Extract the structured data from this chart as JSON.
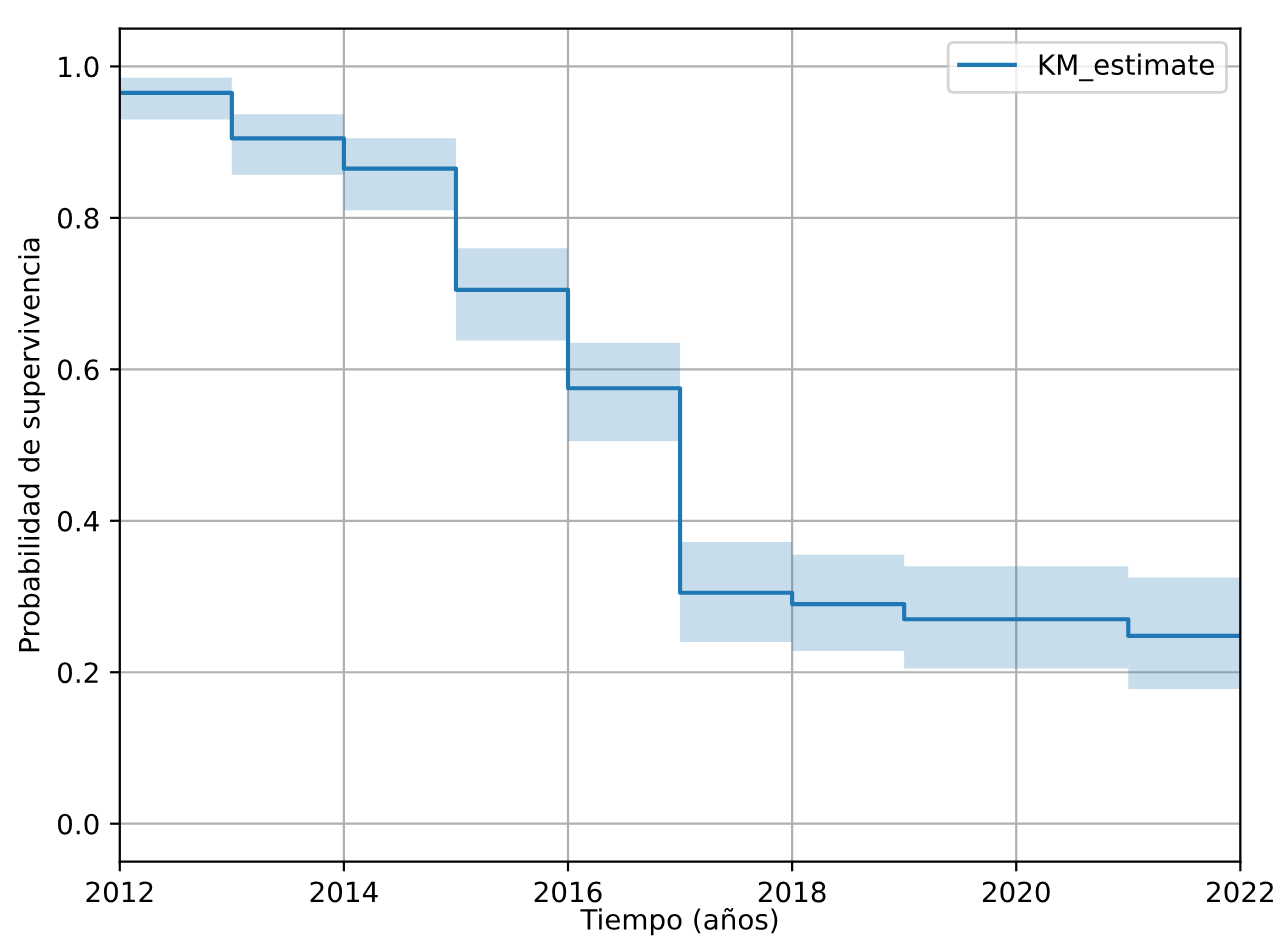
{
  "chart_data": {
    "type": "step",
    "xlabel": "Tiempo (años)",
    "ylabel": "Probabilidad de supervivencia",
    "x": [
      2012,
      2013,
      2014,
      2015,
      2016,
      2017,
      2018,
      2019,
      2020,
      2021,
      2022
    ],
    "series": [
      {
        "name": "KM_estimate",
        "color": "#1f77b4",
        "values": [
          0.965,
          0.905,
          0.865,
          0.705,
          0.575,
          0.305,
          0.29,
          0.27,
          0.27,
          0.248,
          0.248
        ],
        "lower": [
          0.93,
          0.857,
          0.81,
          0.638,
          0.505,
          0.24,
          0.228,
          0.205,
          0.205,
          0.178,
          0.178
        ],
        "upper": [
          0.985,
          0.937,
          0.905,
          0.76,
          0.635,
          0.372,
          0.355,
          0.34,
          0.34,
          0.325,
          0.325
        ]
      }
    ],
    "xlim": [
      2012,
      2022
    ],
    "xticks": [
      2012,
      2014,
      2016,
      2018,
      2020,
      2022
    ],
    "ylim": [
      -0.05,
      1.05
    ],
    "yticks": [
      {
        "value": 0,
        "label": "0.0"
      },
      {
        "value": 0.2,
        "label": "0.2"
      },
      {
        "value": 0.4,
        "label": "0.4"
      },
      {
        "value": 0.6,
        "label": "0.6"
      },
      {
        "value": 0.8,
        "label": "0.8"
      },
      {
        "value": 1,
        "label": "1.0"
      }
    ],
    "grid": true,
    "legend": "top right"
  }
}
